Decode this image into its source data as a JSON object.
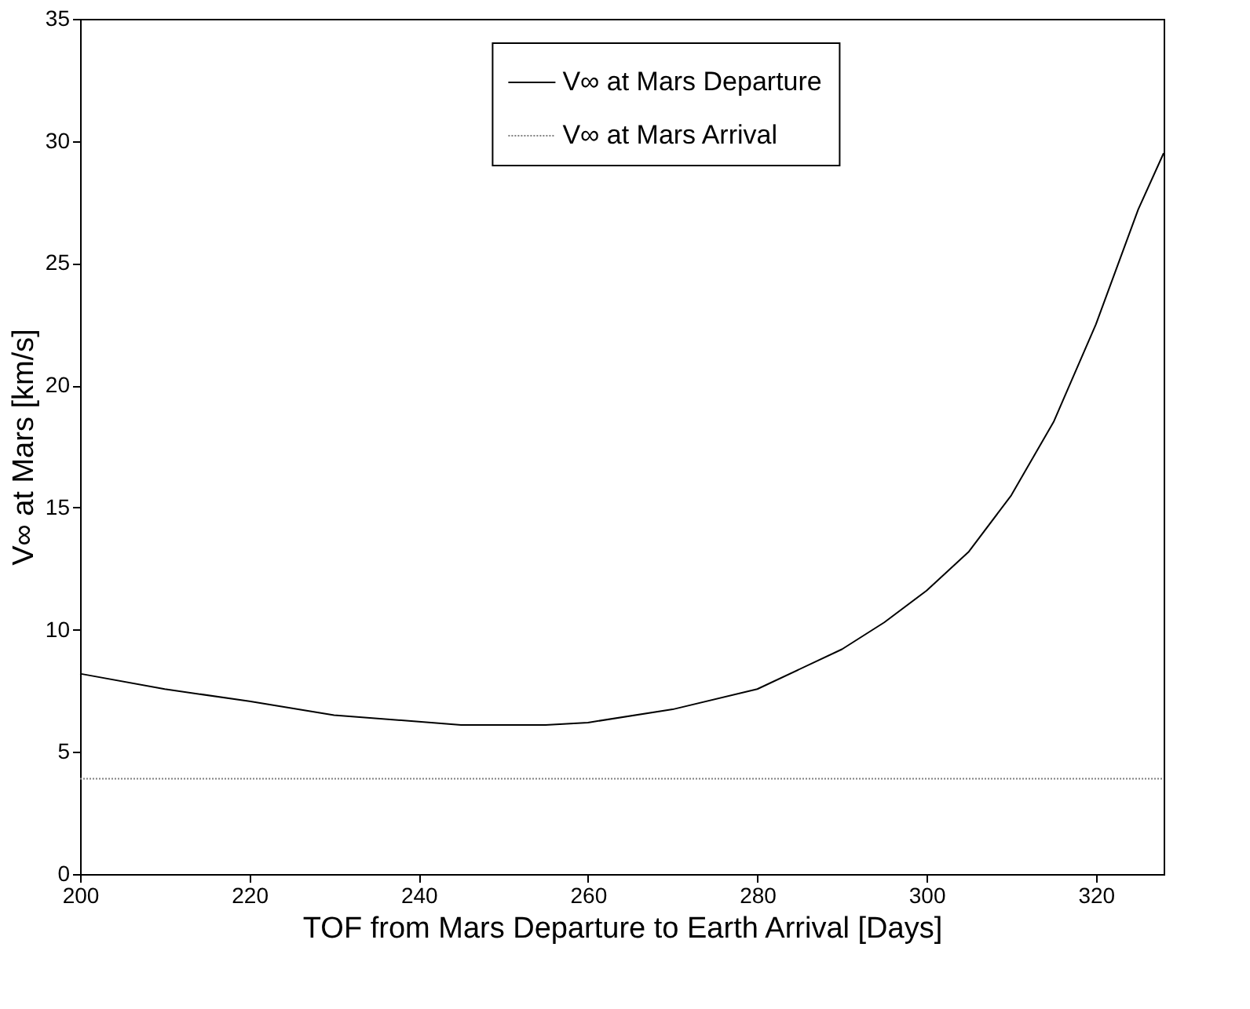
{
  "chart_data": {
    "type": "line",
    "xlabel": "TOF from Mars Departure to Earth Arrival [Days]",
    "ylabel": "V∞ at Mars [km/s]",
    "xlim": [
      200,
      328
    ],
    "xticks": [
      200,
      220,
      240,
      260,
      280,
      300,
      320
    ],
    "ylim": [
      0,
      35
    ],
    "yticks": [
      0,
      5,
      10,
      15,
      20,
      25,
      30,
      35
    ],
    "grid": false,
    "legend": "top",
    "marker": "none",
    "series": [
      {
        "name": "V∞ at Mars Departure",
        "color": "#000000",
        "line_style": "solid",
        "x": [
          200,
          210,
          220,
          230,
          240,
          245,
          250,
          255,
          260,
          270,
          280,
          290,
          295,
          300,
          305,
          310,
          315,
          320,
          325,
          328
        ],
        "values": [
          8.2,
          7.57,
          7.07,
          6.5,
          6.24,
          6.1,
          6.1,
          6.1,
          6.2,
          6.74,
          7.57,
          9.2,
          10.3,
          11.6,
          13.2,
          15.5,
          18.5,
          22.5,
          27.2,
          29.5
        ]
      },
      {
        "name": "V∞ at Mars Arrival",
        "color": "#808080",
        "line_style": "dotted",
        "x": [
          200,
          328
        ],
        "values": [
          3.9,
          3.9
        ]
      }
    ]
  }
}
